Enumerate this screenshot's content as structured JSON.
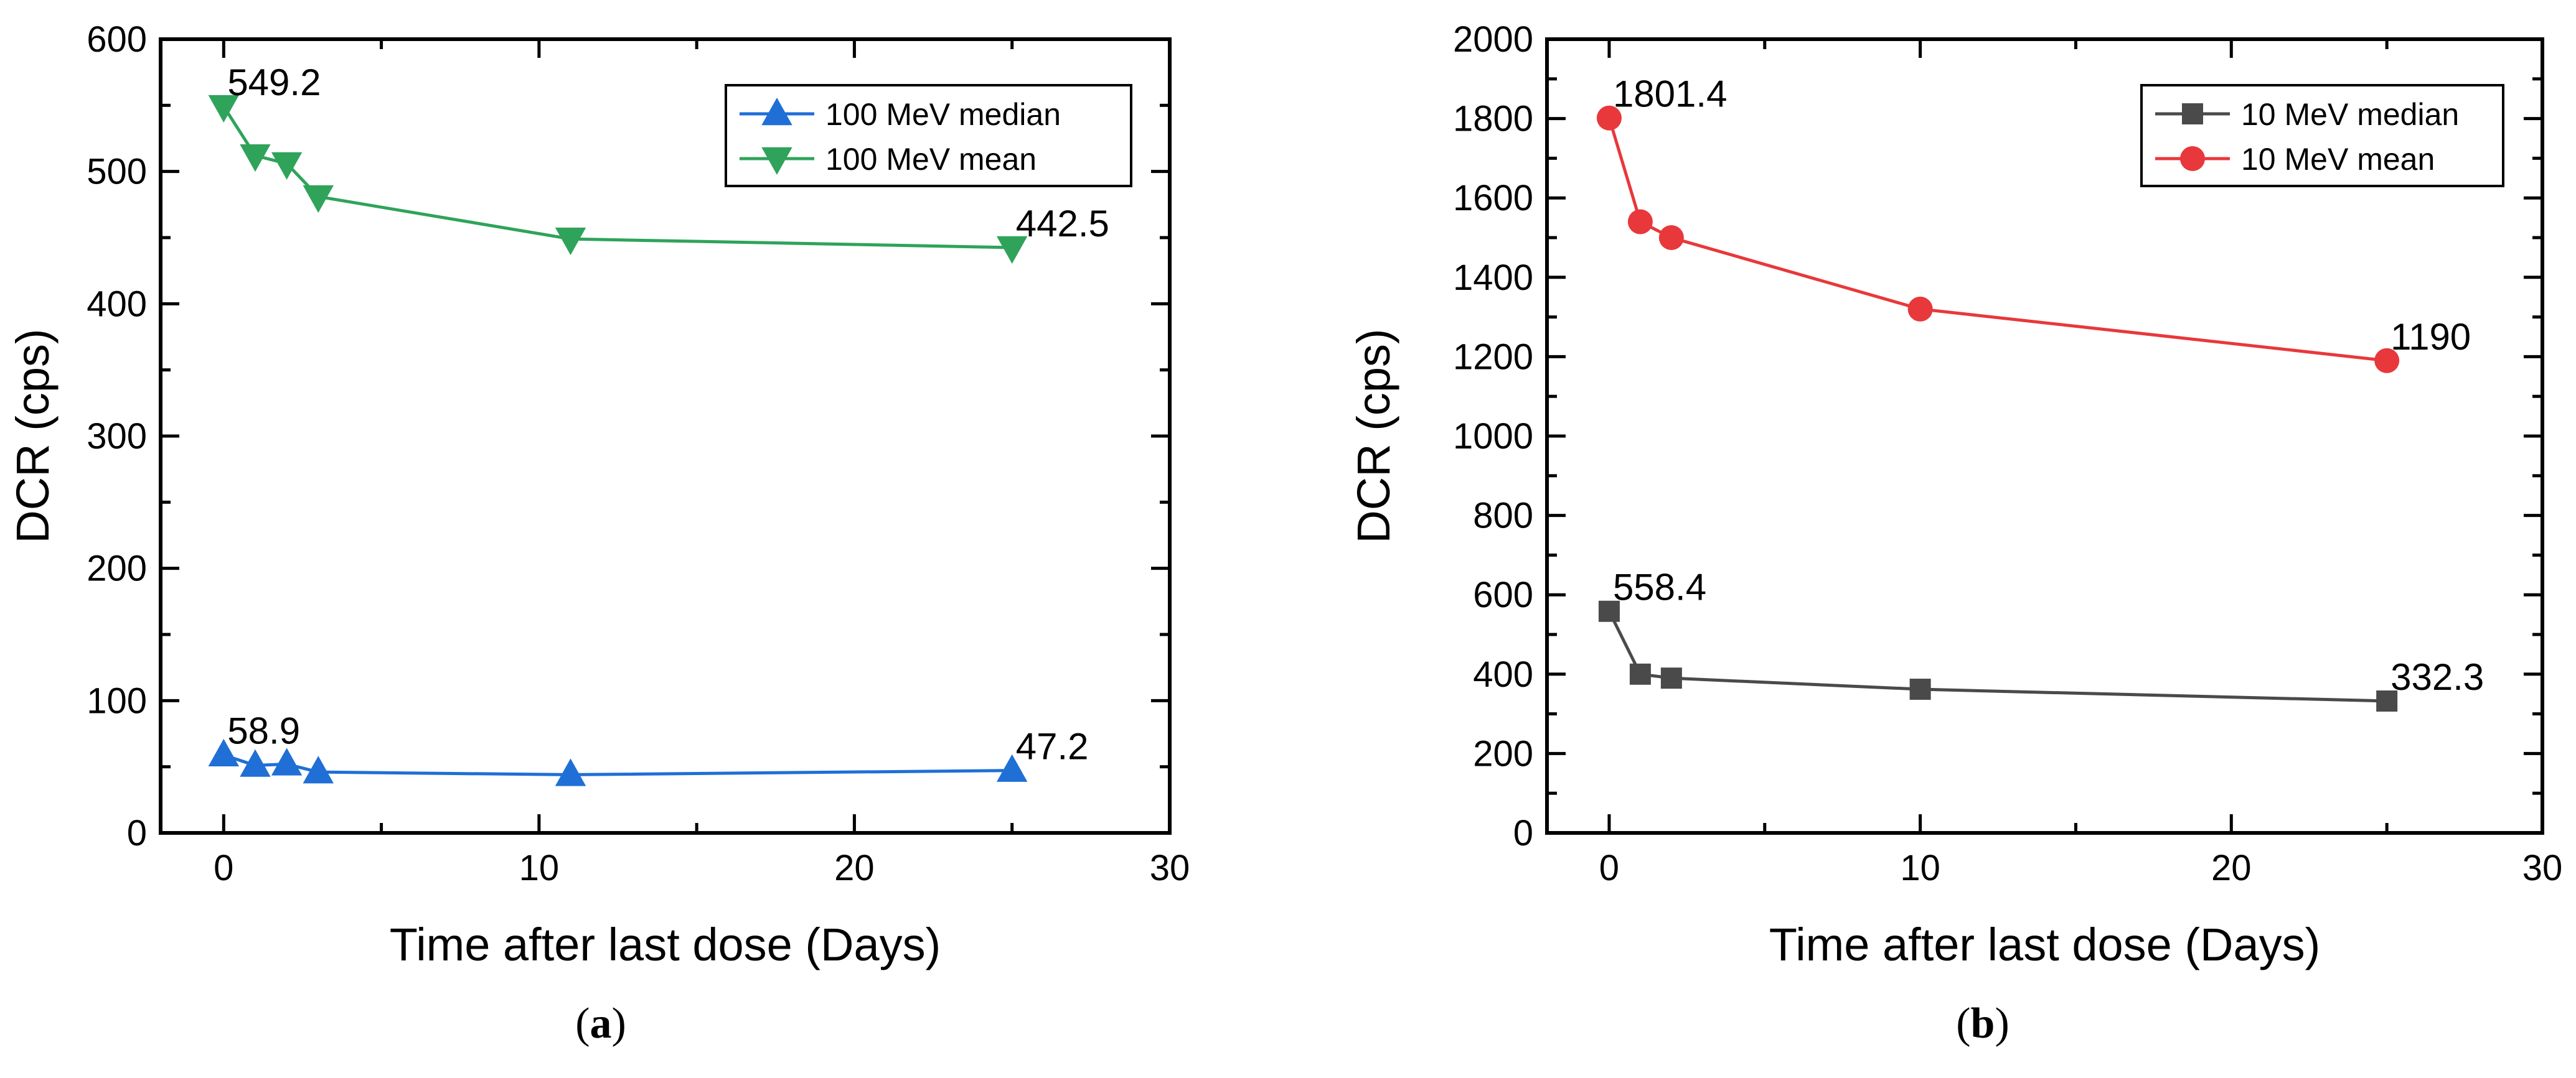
{
  "chart_data": [
    {
      "type": "line",
      "xlabel": "Time after last dose (Days)",
      "ylabel": "DCR (cps)",
      "xlim": [
        -2,
        30
      ],
      "ylim": [
        0,
        600
      ],
      "xticks": [
        "0",
        "10",
        "20",
        "30"
      ],
      "yticks": [
        "0",
        "100",
        "200",
        "300",
        "400",
        "500",
        "600"
      ],
      "legend_position": "top-right",
      "caption": "(a)",
      "caption_letter": "a",
      "series": [
        {
          "name": "100 MeV median",
          "color": "#1f6fd6",
          "marker": "triangle-up",
          "x": [
            0,
            1,
            2,
            3,
            11,
            25
          ],
          "y": [
            58.9,
            51,
            52,
            46,
            44,
            47.2
          ],
          "labels": [
            {
              "index": 0,
              "text": "58.9"
            },
            {
              "index": 5,
              "text": "47.2"
            }
          ]
        },
        {
          "name": "100 MeV mean",
          "color": "#2fa35a",
          "marker": "triangle-down",
          "x": [
            0,
            1,
            2,
            3,
            11,
            25
          ],
          "y": [
            549.2,
            512,
            506,
            481,
            449,
            442.5
          ],
          "labels": [
            {
              "index": 0,
              "text": "549.2"
            },
            {
              "index": 5,
              "text": "442.5"
            }
          ]
        }
      ]
    },
    {
      "type": "line",
      "xlabel": "Time after last dose (Days)",
      "ylabel": "DCR (cps)",
      "xlim": [
        -2,
        30
      ],
      "ylim": [
        0,
        2000
      ],
      "xticks": [
        "0",
        "10",
        "20",
        "30"
      ],
      "yticks": [
        "0",
        "200",
        "400",
        "600",
        "800",
        "1000",
        "1200",
        "1400",
        "1600",
        "1800",
        "2000"
      ],
      "legend_position": "top-right",
      "caption": "(b)",
      "caption_letter": "b",
      "series": [
        {
          "name": "10 MeV median",
          "color": "#4a4a4a",
          "marker": "square",
          "x": [
            0,
            1,
            2,
            10,
            25
          ],
          "y": [
            558.4,
            400,
            390,
            362,
            332.3
          ],
          "labels": [
            {
              "index": 0,
              "text": "558.4"
            },
            {
              "index": 4,
              "text": "332.3"
            }
          ]
        },
        {
          "name": "10 MeV mean",
          "color": "#e8383b",
          "marker": "circle",
          "x": [
            0,
            1,
            2,
            10,
            25
          ],
          "y": [
            1801.4,
            1540,
            1500,
            1320,
            1190
          ],
          "labels": [
            {
              "index": 0,
              "text": "1801.4"
            },
            {
              "index": 4,
              "text": "1190"
            }
          ]
        }
      ]
    }
  ]
}
